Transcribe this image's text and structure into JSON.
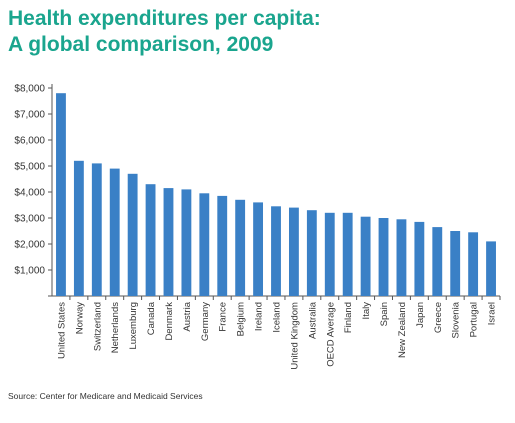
{
  "title_line1": "Health expenditures per capita:",
  "title_line2": "A global comparison, 2009",
  "source": "Source: Center for Medicare and Medicaid Services",
  "colors": {
    "title": "#1aa58e",
    "bar": "#3a80c6",
    "axis": "#555555"
  },
  "chart_data": {
    "type": "bar",
    "title": "Health expenditures per capita: A global comparison, 2009",
    "xlabel": "",
    "ylabel": "",
    "ylim": [
      0,
      8000
    ],
    "yticks": [
      0,
      1000,
      2000,
      3000,
      4000,
      5000,
      6000,
      7000,
      8000
    ],
    "ytick_labels": [
      "",
      "$1,000",
      "$2,000",
      "$3,000",
      "$4,000",
      "$5,000",
      "$6,000",
      "$7,000",
      "$8,000"
    ],
    "grid": false,
    "categories": [
      "United States",
      "Norway",
      "Switzerland",
      "Netherlands",
      "Luxemburg",
      "Canada",
      "Denmark",
      "Austria",
      "Germany",
      "France",
      "Belgium",
      "Ireland",
      "Iceland",
      "United Kingdom",
      "Australia",
      "OECD Average",
      "Finland",
      "Italy",
      "Spain",
      "New Zealand",
      "Japan",
      "Greece",
      "Slovenia",
      "Portugal",
      "Israel"
    ],
    "values": [
      7800,
      5200,
      5100,
      4900,
      4700,
      4300,
      4150,
      4100,
      3950,
      3850,
      3700,
      3600,
      3450,
      3400,
      3300,
      3200,
      3200,
      3050,
      3000,
      2950,
      2850,
      2650,
      2500,
      2450,
      2100
    ]
  }
}
